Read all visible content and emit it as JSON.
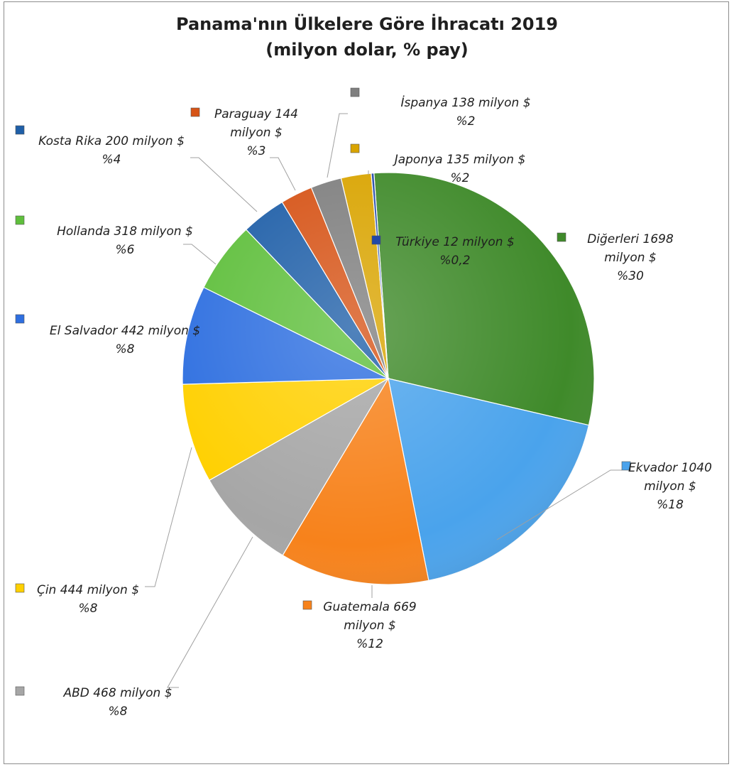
{
  "chart_data": {
    "type": "pie",
    "title": "Panama'nın Ülkelere Göre İhracatı 2019",
    "subtitle": "(milyon dolar, % pay)",
    "unit": "milyon $",
    "slices": [
      {
        "name": "Diğerleri",
        "value": 1698,
        "percent": "%30",
        "color": "#3f8a2a",
        "label_lines": [
          "Diğerleri 1698",
          "milyon $",
          "%30"
        ]
      },
      {
        "name": "Ekvador",
        "value": 1040,
        "percent": "%18",
        "color": "#4aa3ec",
        "label_lines": [
          "Ekvador 1040",
          "milyon $",
          "%18"
        ]
      },
      {
        "name": "Guatemala",
        "value": 669,
        "percent": "%12",
        "color": "#f7821b",
        "label_lines": [
          "Guatemala 669",
          "milyon $",
          "%12"
        ]
      },
      {
        "name": "ABD",
        "value": 468,
        "percent": "%8",
        "color": "#a6a6a6",
        "label_lines": [
          "ABD 468 milyon $",
          "%8"
        ]
      },
      {
        "name": "Çin",
        "value": 444,
        "percent": "%8",
        "color": "#ffd000",
        "label_lines": [
          "Çin 444 milyon $",
          "%8"
        ]
      },
      {
        "name": "El Salvador",
        "value": 442,
        "percent": "%8",
        "color": "#2e6fe0",
        "label_lines": [
          "El Salvador 442 milyon $",
          "%8"
        ]
      },
      {
        "name": "Hollanda",
        "value": 318,
        "percent": "%6",
        "color": "#5fbf3c",
        "label_lines": [
          "Hollanda 318 milyon $",
          "%6"
        ]
      },
      {
        "name": "Kosta Rika",
        "value": 200,
        "percent": "%4",
        "color": "#1f5fa8",
        "label_lines": [
          "Kosta Rika 200 milyon $",
          "%4"
        ]
      },
      {
        "name": "Paraguay",
        "value": 144,
        "percent": "%3",
        "color": "#d65316",
        "label_lines": [
          "Paraguay 144",
          "milyon $",
          "%3"
        ]
      },
      {
        "name": "İspanya",
        "value": 138,
        "percent": "%2",
        "color": "#7f7f7f",
        "label_lines": [
          "İspanya 138 milyon $",
          "%2"
        ]
      },
      {
        "name": "Japonya",
        "value": 135,
        "percent": "%2",
        "color": "#d9a400",
        "label_lines": [
          "Japonya 135 milyon $",
          "%2"
        ]
      },
      {
        "name": "Türkiye",
        "value": 12,
        "percent": "%0,2",
        "color": "#2148a8",
        "label_lines": [
          "Türkiye 12 milyon $",
          "%0,2"
        ]
      }
    ]
  }
}
